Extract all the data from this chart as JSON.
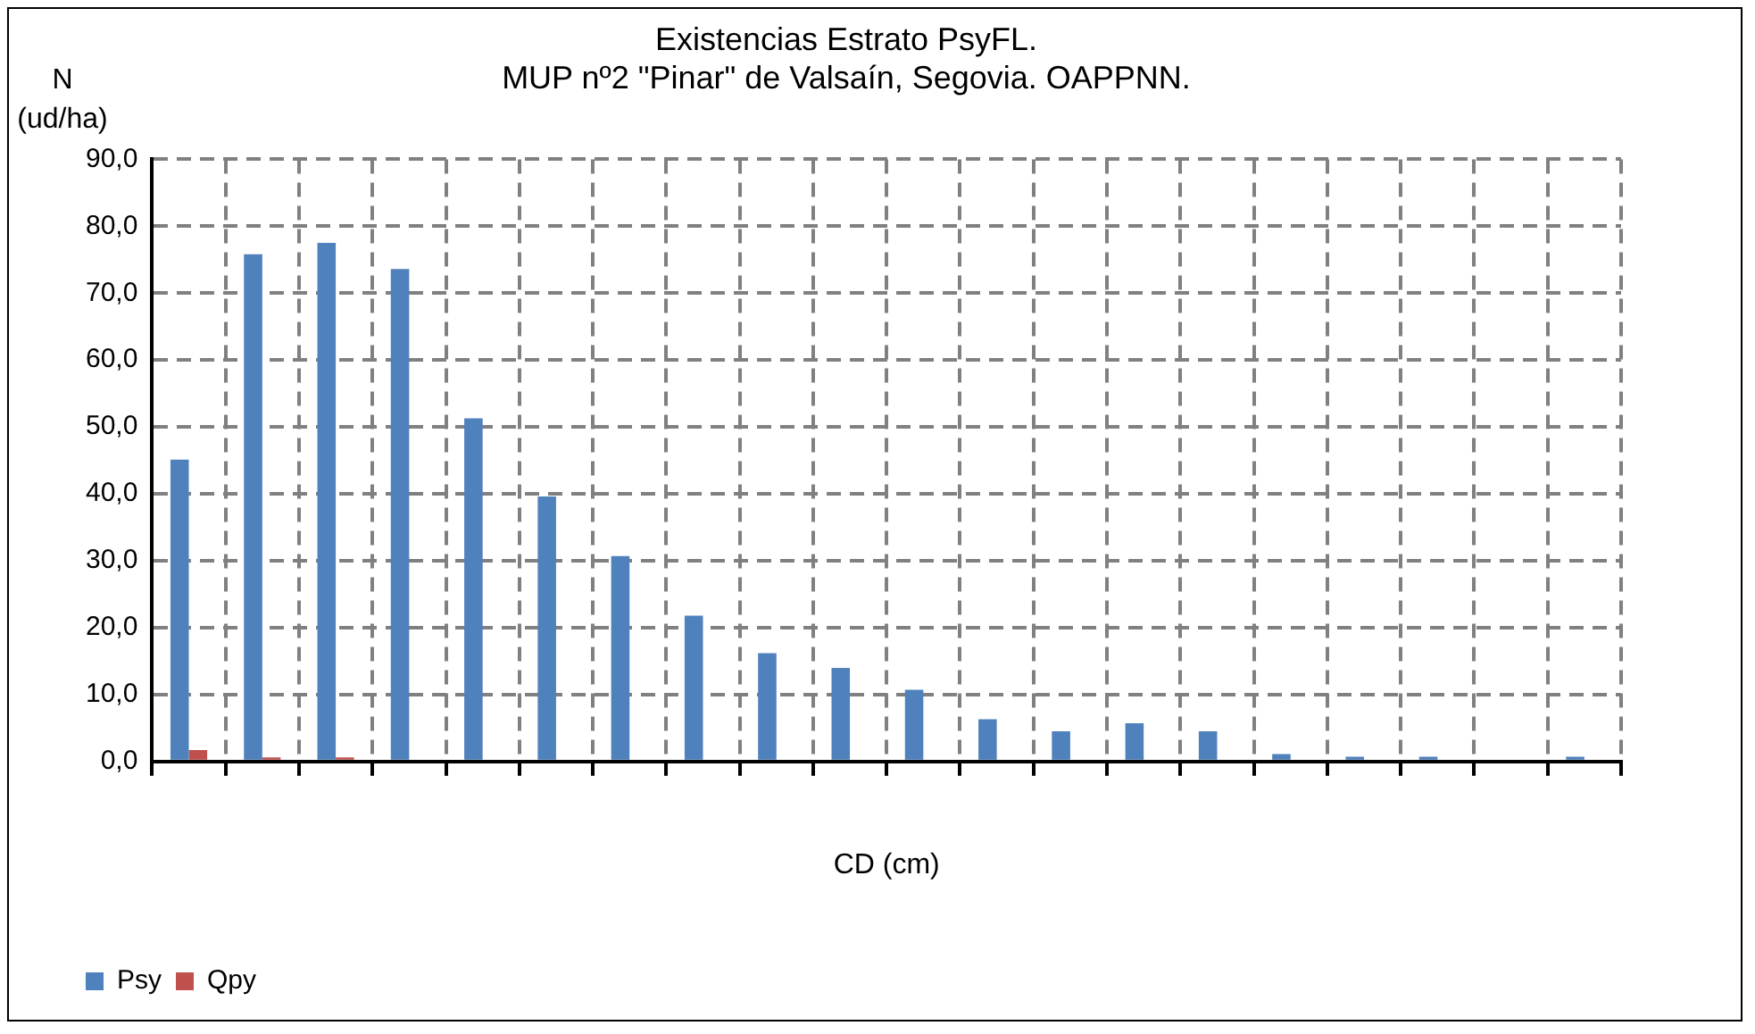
{
  "chart_data": {
    "type": "bar",
    "title": [
      "Existencias Estrato PsyFL.",
      "MUP nº2 \"Pinar\" de Valsaín, Segovia. OAPPNN."
    ],
    "xlabel": "CD (cm)",
    "ylabel": [
      "N",
      "(ud/ha)"
    ],
    "categories": [
      null,
      null,
      null,
      null,
      null,
      null,
      null,
      null,
      null,
      null,
      null,
      null,
      null,
      null,
      null,
      null,
      null,
      null,
      null,
      null
    ],
    "series": [
      {
        "name": "Psy",
        "color": "#4f81bd",
        "values": [
          45.1,
          75.8,
          77.5,
          73.6,
          51.3,
          39.6,
          30.7,
          21.8,
          16.2,
          14.0,
          10.7,
          6.3,
          4.5,
          5.7,
          4.5,
          1.1,
          0.7,
          0.7,
          0,
          0.7
        ]
      },
      {
        "name": "Qpy",
        "color": "#c0504d",
        "values": [
          1.7,
          0.6,
          0.6,
          0,
          0,
          0,
          0,
          0,
          0,
          0,
          0,
          0,
          0,
          0,
          0,
          0,
          0,
          0,
          0,
          0
        ]
      }
    ],
    "ylim": [
      0,
      90
    ],
    "yticks": [
      {
        "value": 0,
        "label": "0,0"
      },
      {
        "value": 10,
        "label": "10,0"
      },
      {
        "value": 20,
        "label": "20,0"
      },
      {
        "value": 30,
        "label": "30,0"
      },
      {
        "value": 40,
        "label": "40,0"
      },
      {
        "value": 50,
        "label": "50,0"
      },
      {
        "value": 60,
        "label": "60,0"
      },
      {
        "value": 70,
        "label": "70,0"
      },
      {
        "value": 80,
        "label": "80,0"
      },
      {
        "value": 90,
        "label": "90,0"
      }
    ],
    "grid": true,
    "legend": "bottom left"
  }
}
